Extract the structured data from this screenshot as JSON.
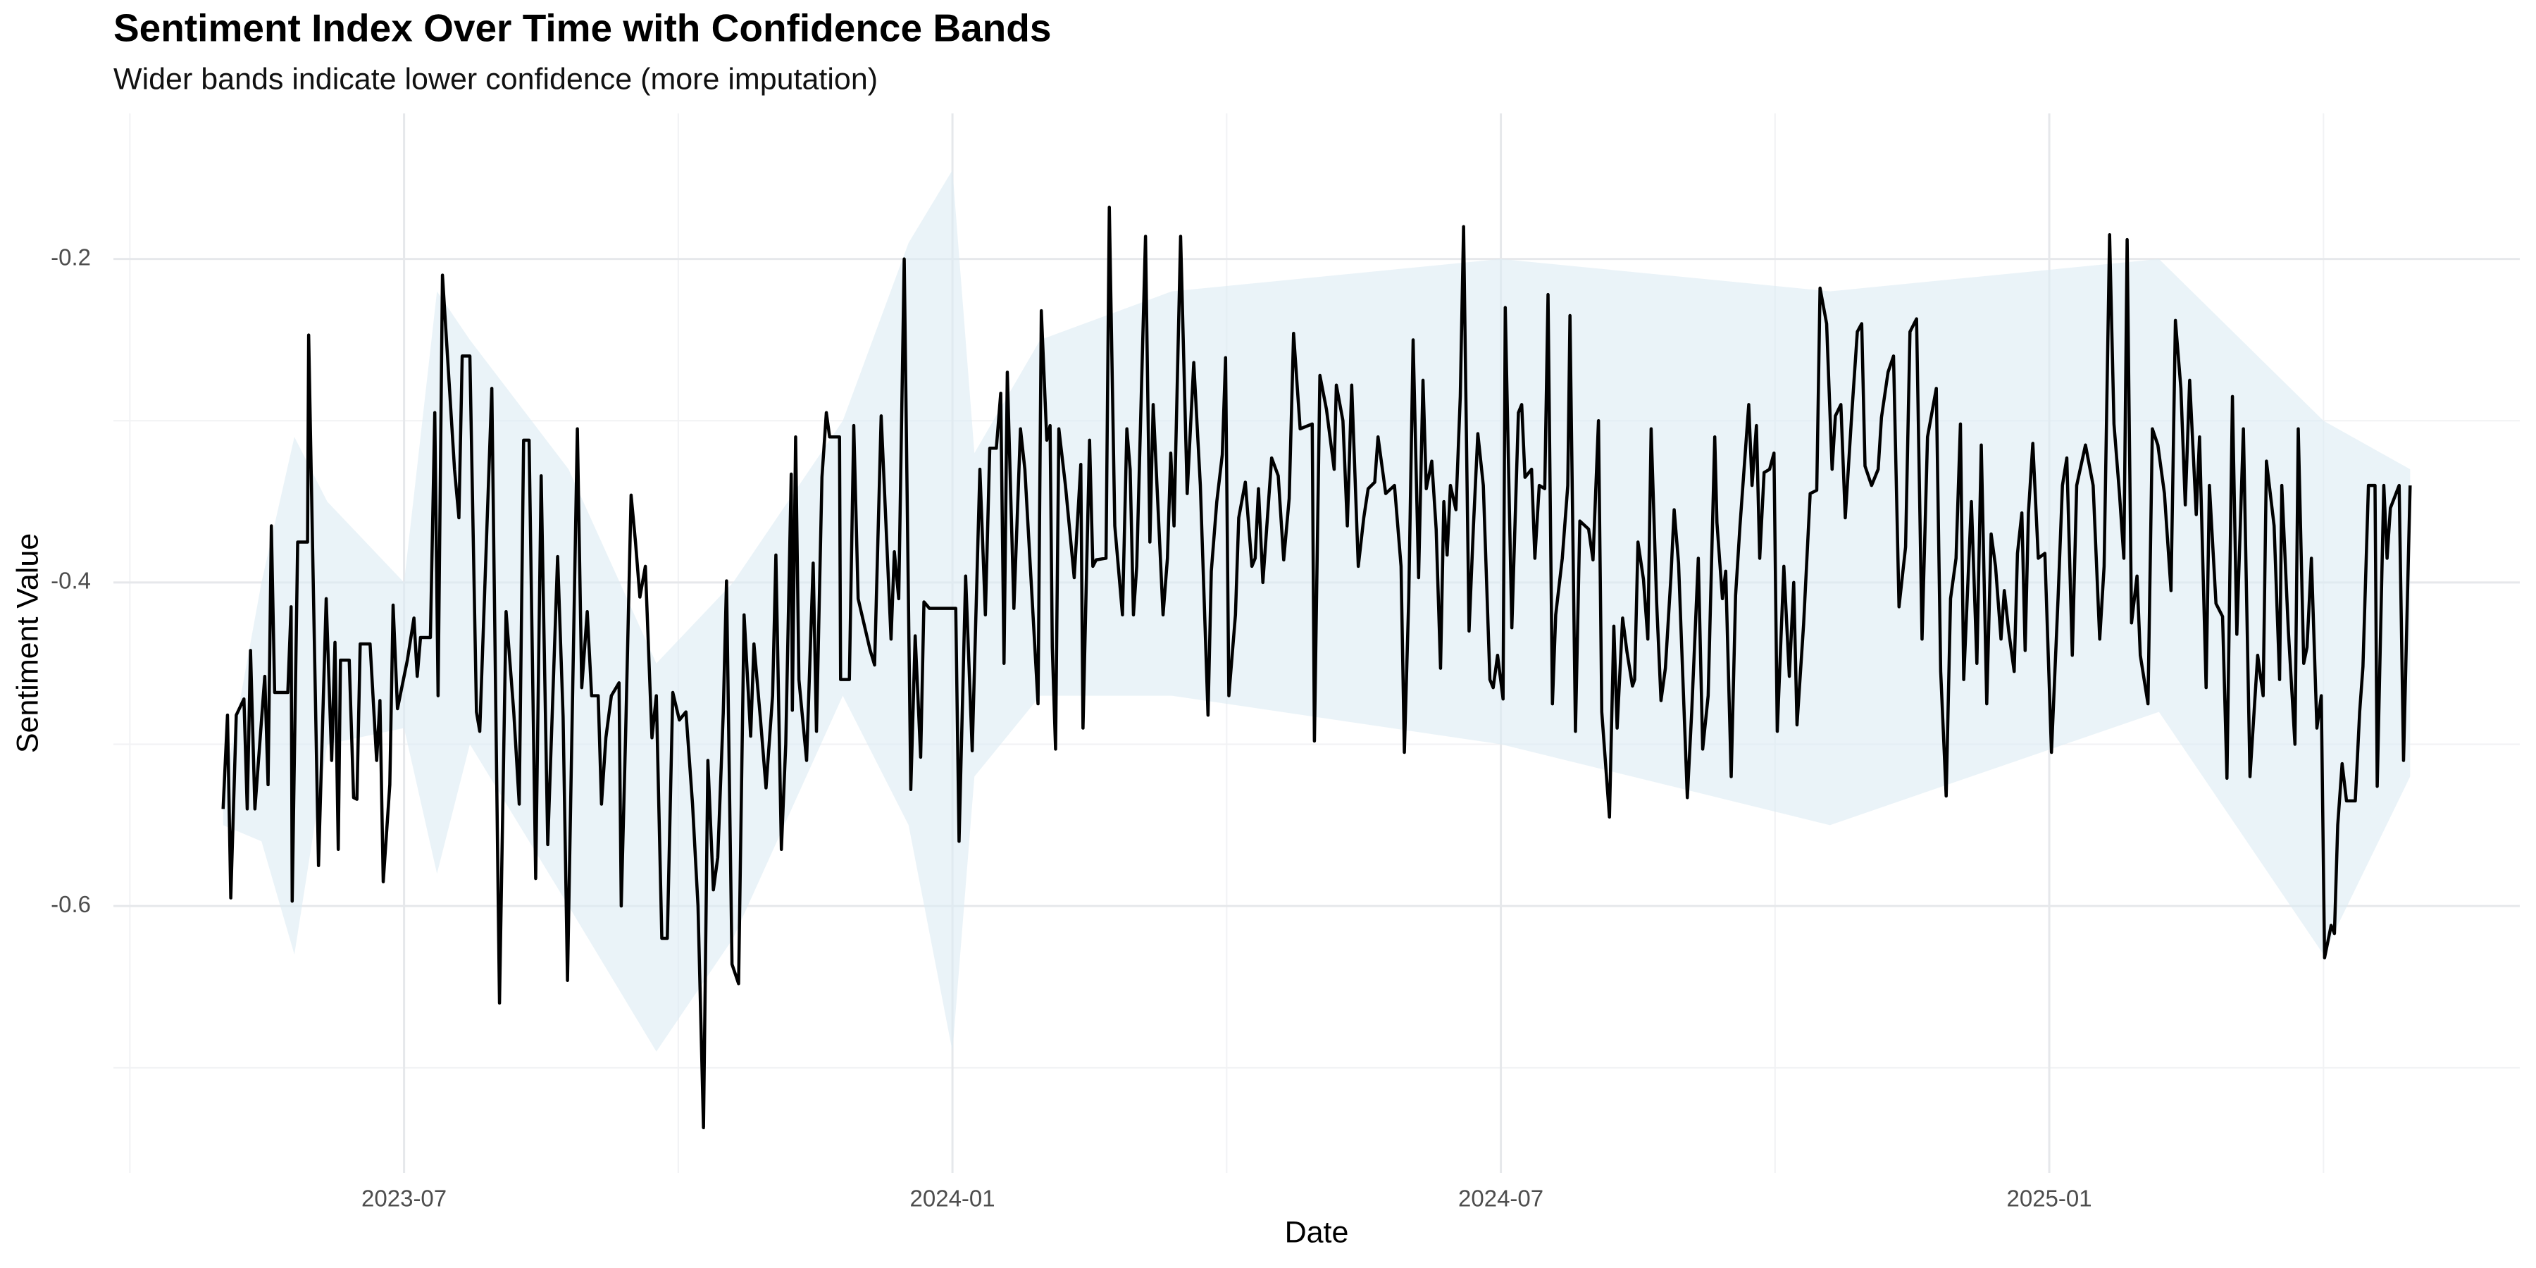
{
  "chart_data": {
    "type": "line",
    "title": "Sentiment Index Over Time with Confidence Bands",
    "subtitle": "Wider bands indicate lower confidence (more imputation)",
    "x_label": "Date",
    "y_label": "Sentiment Value",
    "xlim": [
      2023.235,
      2025.429
    ],
    "ylim": [
      -0.765,
      -0.11
    ],
    "xticks": [
      {
        "value": 2023.5,
        "label": "2023-07"
      },
      {
        "value": 2024.0,
        "label": "2024-01"
      },
      {
        "value": 2024.5,
        "label": "2024-07"
      },
      {
        "value": 2025.0,
        "label": "2025-01"
      }
    ],
    "yticks": [
      -0.6,
      -0.4,
      -0.2
    ],
    "grid": true,
    "band": {
      "color": "#dcebf3",
      "x": [
        2023.335,
        2023.37,
        2023.4,
        2023.43,
        2023.5,
        2023.53,
        2023.56,
        2023.65,
        2023.73,
        2023.8,
        2023.9,
        2023.96,
        2024.0,
        2024.02,
        2024.08,
        2024.2,
        2024.5,
        2024.8,
        2025.1,
        2025.25,
        2025.329
      ],
      "lower": [
        -0.55,
        -0.56,
        -0.63,
        -0.5,
        -0.49,
        -0.58,
        -0.5,
        -0.6,
        -0.69,
        -0.62,
        -0.47,
        -0.55,
        -0.69,
        -0.52,
        -0.47,
        -0.47,
        -0.5,
        -0.55,
        -0.48,
        -0.63,
        -0.52
      ],
      "upper": [
        -0.53,
        -0.4,
        -0.31,
        -0.35,
        -0.4,
        -0.22,
        -0.25,
        -0.33,
        -0.45,
        -0.4,
        -0.3,
        -0.19,
        -0.145,
        -0.32,
        -0.25,
        -0.22,
        -0.2,
        -0.22,
        -0.2,
        -0.3,
        -0.33
      ]
    },
    "series": [
      {
        "color": "#000000",
        "x": [
          2023.335,
          2023.339,
          2023.342,
          2023.347,
          2023.354,
          2023.357,
          2023.36,
          2023.364,
          2023.373,
          2023.376,
          2023.379,
          2023.382,
          2023.394,
          2023.397,
          2023.398,
          2023.403,
          2023.412,
          2023.413,
          2023.422,
          2023.429,
          2023.434,
          2023.437,
          2023.44,
          2023.442,
          2023.45,
          2023.454,
          2023.457,
          2023.46,
          2023.469,
          2023.475,
          2023.478,
          2023.481,
          2023.487,
          2023.49,
          2023.494,
          2023.503,
          2023.509,
          2023.512,
          2023.515,
          2023.524,
          2023.528,
          2023.531,
          2023.535,
          2023.546,
          2023.55,
          2023.553,
          2023.56,
          2023.566,
          2023.569,
          2023.58,
          2023.587,
          2023.593,
          2023.6,
          2023.605,
          2023.609,
          2023.614,
          2023.62,
          2023.625,
          2023.631,
          2023.64,
          2023.645,
          2023.649,
          2023.658,
          2023.662,
          2023.667,
          2023.671,
          2023.677,
          2023.68,
          2023.684,
          2023.689,
          2023.696,
          2023.698,
          2023.702,
          2023.707,
          2023.711,
          2023.715,
          2023.72,
          2023.726,
          2023.73,
          2023.735,
          2023.74,
          2023.745,
          2023.751,
          2023.757,
          2023.763,
          2023.768,
          2023.773,
          2023.777,
          2023.782,
          2023.786,
          2023.791,
          2023.794,
          2023.799,
          2023.805,
          2023.81,
          2023.816,
          2023.819,
          2023.825,
          2023.83,
          2023.836,
          2023.839,
          2023.844,
          2023.848,
          2023.853,
          2023.854,
          2023.857,
          2023.86,
          2023.867,
          2023.873,
          2023.876,
          2023.881,
          2023.885,
          2023.888,
          2023.897,
          2023.898,
          2023.906,
          2023.91,
          2023.914,
          2023.925,
          2023.929,
          2023.935,
          2023.944,
          2023.947,
          2023.951,
          2023.956,
          2023.962,
          2023.966,
          2023.971,
          2023.974,
          2023.979,
          2024.003,
          2024.006,
          2024.012,
          2024.018,
          2024.025,
          2024.03,
          2024.034,
          2024.04,
          2024.044,
          2024.047,
          2024.05,
          2024.056,
          2024.062,
          2024.066,
          2024.078,
          2024.081,
          2024.086,
          2024.089,
          2024.091,
          2024.094,
          2024.097,
          2024.103,
          2024.111,
          2024.117,
          2024.119,
          2024.125,
          2024.128,
          2024.131,
          2024.14,
          2024.143,
          2024.148,
          2024.155,
          2024.159,
          2024.162,
          2024.165,
          2024.168,
          2024.176,
          2024.18,
          2024.183,
          2024.192,
          2024.196,
          2024.199,
          2024.202,
          2024.208,
          2024.214,
          2024.22,
          2024.226,
          2024.233,
          2024.236,
          2024.241,
          2024.246,
          2024.249,
          2024.252,
          2024.258,
          2024.261,
          2024.267,
          2024.273,
          2024.276,
          2024.279,
          2024.283,
          2024.291,
          2024.297,
          2024.302,
          2024.307,
          2024.311,
          2024.317,
          2024.328,
          2024.33,
          2024.335,
          2024.341,
          2024.348,
          2024.35,
          2024.356,
          2024.36,
          2024.364,
          2024.37,
          2024.375,
          2024.379,
          2024.385,
          2024.388,
          2024.395,
          2024.403,
          2024.409,
          2024.412,
          2024.416,
          2024.42,
          2024.425,
          2024.429,
          2024.432,
          2024.437,
          2024.441,
          2024.445,
          2024.448,
          2024.451,
          2024.454,
          2024.459,
          2024.463,
          2024.466,
          2024.471,
          2024.475,
          2024.479,
          2024.484,
          2024.49,
          2024.493,
          2024.497,
          2024.502,
          2024.504,
          2024.51,
          2024.516,
          2024.519,
          2024.522,
          2024.528,
          2024.531,
          2024.535,
          2024.54,
          2024.543,
          2024.547,
          2024.55,
          2024.556,
          2024.561,
          2024.563,
          2024.568,
          2024.572,
          2024.58,
          2024.584,
          2024.589,
          2024.592,
          2024.599,
          2024.603,
          2024.606,
          2024.611,
          2024.615,
          2024.62,
          2024.622,
          2024.625,
          2024.63,
          2024.634,
          2024.637,
          2024.642,
          2024.646,
          2024.65,
          2024.655,
          2024.658,
          2024.662,
          2024.67,
          2024.674,
          2024.68,
          2024.684,
          2024.689,
          2024.695,
          2024.697,
          2024.702,
          2024.705,
          2024.71,
          2024.714,
          2024.718,
          2024.726,
          2024.729,
          2024.733,
          2024.736,
          2024.74,
          2024.745,
          2024.749,
          2024.752,
          2024.758,
          2024.763,
          2024.767,
          2024.77,
          2024.776,
          2024.782,
          2024.788,
          2024.791,
          2024.797,
          2024.802,
          2024.805,
          2024.81,
          2024.814,
          2024.82,
          2024.825,
          2024.829,
          2024.832,
          2024.838,
          2024.844,
          2024.847,
          2024.853,
          2024.858,
          2024.863,
          2024.869,
          2024.873,
          2024.879,
          2024.884,
          2024.889,
          2024.897,
          2024.901,
          2024.906,
          2024.91,
          2024.915,
          2024.919,
          2024.922,
          2024.926,
          2024.929,
          2024.934,
          2024.938,
          2024.943,
          2024.947,
          2024.951,
          2024.956,
          2024.959,
          2024.963,
          2024.968,
          2024.971,
          2024.975,
          2024.978,
          2024.981,
          2024.985,
          2024.99,
          2024.996,
          2025.002,
          2025.008,
          2025.012,
          2025.016,
          2025.021,
          2025.025,
          2025.033,
          2025.04,
          2025.046,
          2025.05,
          2025.055,
          2025.059,
          2025.064,
          2025.068,
          2025.071,
          2025.075,
          2025.08,
          2025.083,
          2025.09,
          2025.094,
          2025.099,
          2025.105,
          2025.111,
          2025.115,
          2025.12,
          2025.124,
          2025.128,
          2025.134,
          2025.137,
          2025.143,
          2025.146,
          2025.152,
          2025.158,
          2025.162,
          2025.167,
          2025.171,
          2025.177,
          2025.183,
          2025.19,
          2025.195,
          2025.198,
          2025.205,
          2025.21,
          2025.212,
          2025.218,
          2025.224,
          2025.227,
          2025.232,
          2025.235,
          2025.239,
          2025.244,
          2025.248,
          2025.251,
          2025.257,
          2025.26,
          2025.263,
          2025.267,
          2025.271,
          2025.279,
          2025.283,
          2025.286,
          2025.291,
          2025.297,
          2025.299,
          2025.305,
          2025.308,
          2025.311,
          2025.319,
          2025.323,
          2025.329
        ],
        "values": [
          -0.54,
          -0.482,
          -0.595,
          -0.482,
          -0.472,
          -0.54,
          -0.442,
          -0.54,
          -0.458,
          -0.525,
          -0.365,
          -0.468,
          -0.468,
          -0.415,
          -0.597,
          -0.375,
          -0.375,
          -0.247,
          -0.575,
          -0.41,
          -0.51,
          -0.437,
          -0.565,
          -0.448,
          -0.448,
          -0.533,
          -0.534,
          -0.438,
          -0.438,
          -0.51,
          -0.473,
          -0.585,
          -0.525,
          -0.414,
          -0.478,
          -0.448,
          -0.422,
          -0.458,
          -0.434,
          -0.434,
          -0.295,
          -0.47,
          -0.21,
          -0.33,
          -0.36,
          -0.26,
          -0.26,
          -0.48,
          -0.492,
          -0.28,
          -0.66,
          -0.418,
          -0.48,
          -0.537,
          -0.312,
          -0.312,
          -0.583,
          -0.334,
          -0.562,
          -0.384,
          -0.483,
          -0.646,
          -0.305,
          -0.465,
          -0.418,
          -0.47,
          -0.47,
          -0.537,
          -0.496,
          -0.47,
          -0.462,
          -0.6,
          -0.494,
          -0.346,
          -0.375,
          -0.409,
          -0.39,
          -0.496,
          -0.47,
          -0.62,
          -0.62,
          -0.468,
          -0.485,
          -0.48,
          -0.537,
          -0.6,
          -0.737,
          -0.51,
          -0.59,
          -0.57,
          -0.481,
          -0.399,
          -0.636,
          -0.648,
          -0.42,
          -0.495,
          -0.438,
          -0.485,
          -0.527,
          -0.47,
          -0.383,
          -0.565,
          -0.5,
          -0.333,
          -0.479,
          -0.31,
          -0.46,
          -0.51,
          -0.388,
          -0.492,
          -0.335,
          -0.295,
          -0.31,
          -0.31,
          -0.46,
          -0.46,
          -0.303,
          -0.41,
          -0.442,
          -0.451,
          -0.297,
          -0.435,
          -0.381,
          -0.41,
          -0.2,
          -0.528,
          -0.433,
          -0.508,
          -0.412,
          -0.416,
          -0.416,
          -0.56,
          -0.396,
          -0.504,
          -0.33,
          -0.42,
          -0.317,
          -0.317,
          -0.283,
          -0.45,
          -0.27,
          -0.416,
          -0.305,
          -0.33,
          -0.475,
          -0.232,
          -0.312,
          -0.303,
          -0.44,
          -0.503,
          -0.305,
          -0.34,
          -0.397,
          -0.327,
          -0.49,
          -0.312,
          -0.39,
          -0.386,
          -0.385,
          -0.168,
          -0.365,
          -0.42,
          -0.305,
          -0.33,
          -0.42,
          -0.39,
          -0.186,
          -0.375,
          -0.29,
          -0.42,
          -0.385,
          -0.32,
          -0.365,
          -0.186,
          -0.345,
          -0.264,
          -0.34,
          -0.482,
          -0.393,
          -0.35,
          -0.321,
          -0.261,
          -0.47,
          -0.42,
          -0.36,
          -0.338,
          -0.39,
          -0.385,
          -0.342,
          -0.4,
          -0.323,
          -0.334,
          -0.386,
          -0.348,
          -0.246,
          -0.305,
          -0.302,
          -0.498,
          -0.272,
          -0.293,
          -0.33,
          -0.278,
          -0.3,
          -0.365,
          -0.278,
          -0.39,
          -0.36,
          -0.342,
          -0.338,
          -0.31,
          -0.345,
          -0.34,
          -0.39,
          -0.505,
          -0.41,
          -0.25,
          -0.397,
          -0.275,
          -0.342,
          -0.325,
          -0.367,
          -0.453,
          -0.35,
          -0.383,
          -0.34,
          -0.355,
          -0.285,
          -0.18,
          -0.43,
          -0.365,
          -0.308,
          -0.34,
          -0.46,
          -0.465,
          -0.445,
          -0.472,
          -0.23,
          -0.428,
          -0.295,
          -0.29,
          -0.335,
          -0.33,
          -0.385,
          -0.34,
          -0.342,
          -0.222,
          -0.475,
          -0.42,
          -0.385,
          -0.34,
          -0.235,
          -0.492,
          -0.362,
          -0.367,
          -0.386,
          -0.3,
          -0.48,
          -0.545,
          -0.427,
          -0.49,
          -0.422,
          -0.443,
          -0.464,
          -0.46,
          -0.375,
          -0.398,
          -0.435,
          -0.305,
          -0.412,
          -0.473,
          -0.453,
          -0.397,
          -0.355,
          -0.388,
          -0.533,
          -0.48,
          -0.385,
          -0.503,
          -0.47,
          -0.31,
          -0.363,
          -0.41,
          -0.393,
          -0.52,
          -0.408,
          -0.365,
          -0.29,
          -0.34,
          -0.303,
          -0.385,
          -0.332,
          -0.33,
          -0.32,
          -0.492,
          -0.39,
          -0.458,
          -0.4,
          -0.488,
          -0.426,
          -0.345,
          -0.343,
          -0.218,
          -0.24,
          -0.33,
          -0.297,
          -0.29,
          -0.36,
          -0.295,
          -0.245,
          -0.24,
          -0.328,
          -0.34,
          -0.33,
          -0.298,
          -0.27,
          -0.26,
          -0.415,
          -0.378,
          -0.245,
          -0.237,
          -0.435,
          -0.31,
          -0.28,
          -0.455,
          -0.532,
          -0.41,
          -0.385,
          -0.302,
          -0.46,
          -0.397,
          -0.35,
          -0.45,
          -0.315,
          -0.475,
          -0.37,
          -0.39,
          -0.435,
          -0.405,
          -0.43,
          -0.455,
          -0.382,
          -0.357,
          -0.442,
          -0.357,
          -0.314,
          -0.385,
          -0.382,
          -0.505,
          -0.41,
          -0.34,
          -0.323,
          -0.445,
          -0.34,
          -0.315,
          -0.34,
          -0.435,
          -0.39,
          -0.185,
          -0.302,
          -0.345,
          -0.385,
          -0.188,
          -0.425,
          -0.396,
          -0.445,
          -0.475,
          -0.305,
          -0.315,
          -0.345,
          -0.405,
          -0.238,
          -0.28,
          -0.352,
          -0.275,
          -0.358,
          -0.31,
          -0.465,
          -0.34,
          -0.413,
          -0.421,
          -0.521,
          -0.285,
          -0.432,
          -0.305,
          -0.52,
          -0.445,
          -0.47,
          -0.325,
          -0.365,
          -0.46,
          -0.34,
          -0.43,
          -0.5,
          -0.305,
          -0.45,
          -0.44,
          -0.385,
          -0.49,
          -0.47,
          -0.632,
          -0.612,
          -0.617,
          -0.55,
          -0.512,
          -0.535,
          -0.535,
          -0.48,
          -0.452,
          -0.34,
          -0.34,
          -0.526,
          -0.34,
          -0.385,
          -0.354,
          -0.34,
          -0.51,
          -0.34
        ]
      }
    ]
  }
}
